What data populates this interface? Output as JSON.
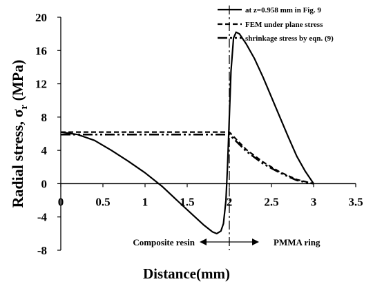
{
  "chart_data": {
    "type": "line",
    "title": "",
    "xlabel": "Distance(mm)",
    "ylabel_main": "Radial stress, σ",
    "ylabel_sub": "r",
    "ylabel_unit": " (MPa)",
    "xlim": [
      0,
      3.5
    ],
    "ylim": [
      -8,
      20
    ],
    "xticks": [
      0,
      0.5,
      1,
      1.5,
      2,
      2.5,
      3,
      3.5
    ],
    "xtick_labels": [
      "0",
      "0.5",
      "1",
      "1.5",
      "2",
      "2.5",
      "3",
      "3.5"
    ],
    "yticks": [
      -8,
      -4,
      0,
      4,
      8,
      12,
      16,
      20
    ],
    "ytick_labels": [
      "-8",
      "-4",
      "0",
      "4",
      "8",
      "12",
      "16",
      "20"
    ],
    "grid": false,
    "legend_position": "top-right",
    "series": [
      {
        "name": "at z=0.958 mm in Fig. 9",
        "style": "solid",
        "x": [
          0,
          0.2,
          0.4,
          0.6,
          0.8,
          1.0,
          1.2,
          1.4,
          1.55,
          1.7,
          1.8,
          1.85,
          1.9,
          1.93,
          1.96,
          1.98,
          2.0,
          2.02,
          2.05,
          2.08,
          2.12,
          2.2,
          2.3,
          2.4,
          2.5,
          2.6,
          2.7,
          2.8,
          2.9,
          3.0
        ],
        "y": [
          6.2,
          5.9,
          5.2,
          4.0,
          2.7,
          1.3,
          -0.3,
          -2.2,
          -3.6,
          -5.0,
          -5.8,
          -6.0,
          -5.7,
          -4.8,
          -2.0,
          2.5,
          8.0,
          13.5,
          17.5,
          18.2,
          18.0,
          16.8,
          15.0,
          12.8,
          10.4,
          8.0,
          5.6,
          3.3,
          1.5,
          0.0
        ]
      },
      {
        "name": "FEM under  plane stress",
        "style": "dashed",
        "x": [
          0,
          2.0,
          2.2,
          2.4,
          2.6,
          2.8,
          3.0
        ],
        "y": [
          6.2,
          6.2,
          4.1,
          2.6,
          1.4,
          0.5,
          0.0
        ]
      },
      {
        "name": "shrinkage stress by eqn. (9)",
        "style": "dashdotdot",
        "x": [
          0,
          2.0,
          2.2,
          2.4,
          2.6,
          2.8,
          3.0
        ],
        "y": [
          5.9,
          5.9,
          3.9,
          2.4,
          1.3,
          0.4,
          0.0
        ]
      }
    ],
    "annotations": {
      "divider_x": 2.0,
      "left_region": "Composite resin",
      "right_region": "PMMA ring"
    }
  }
}
